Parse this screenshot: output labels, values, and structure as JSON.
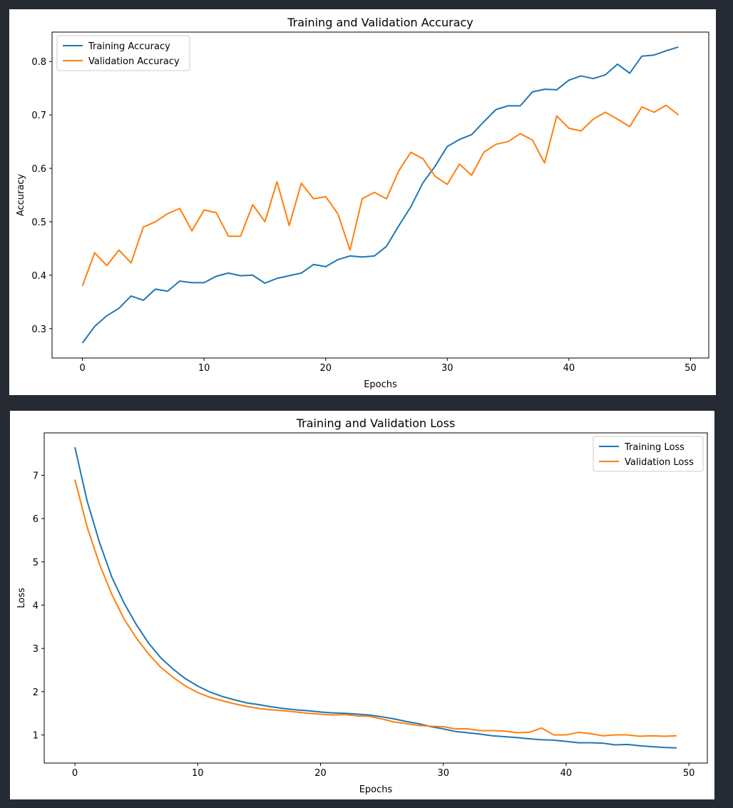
{
  "chart_data": [
    {
      "type": "line",
      "title": "Training and Validation Accuracy",
      "xlabel": "Epochs",
      "ylabel": "Accuracy",
      "xlim": [
        -2.5,
        51.5
      ],
      "ylim": [
        0.245,
        0.855
      ],
      "xticks": [
        0,
        10,
        20,
        30,
        40,
        50
      ],
      "yticks": [
        0.3,
        0.4,
        0.5,
        0.6,
        0.7,
        0.8
      ],
      "ytick_labels": [
        "0.3",
        "0.4",
        "0.5",
        "0.6",
        "0.7",
        "0.8"
      ],
      "grid": false,
      "legend_position": "top-left",
      "x": [
        0,
        1,
        2,
        3,
        4,
        5,
        6,
        7,
        8,
        9,
        10,
        11,
        12,
        13,
        14,
        15,
        16,
        17,
        18,
        19,
        20,
        21,
        22,
        23,
        24,
        25,
        26,
        27,
        28,
        29,
        30,
        31,
        32,
        33,
        34,
        35,
        36,
        37,
        38,
        39,
        40,
        41,
        42,
        43,
        44,
        45,
        46,
        47,
        48,
        49
      ],
      "series": [
        {
          "name": "Training Accuracy",
          "color": "#1f77b4",
          "values": [
            0.273,
            0.304,
            0.324,
            0.338,
            0.361,
            0.353,
            0.374,
            0.37,
            0.389,
            0.386,
            0.386,
            0.398,
            0.404,
            0.399,
            0.4,
            0.385,
            0.394,
            0.399,
            0.404,
            0.42,
            0.416,
            0.429,
            0.436,
            0.434,
            0.436,
            0.454,
            0.492,
            0.528,
            0.573,
            0.604,
            0.641,
            0.654,
            0.663,
            0.687,
            0.71,
            0.717,
            0.717,
            0.743,
            0.748,
            0.747,
            0.765,
            0.773,
            0.768,
            0.775,
            0.795,
            0.778,
            0.81,
            0.812,
            0.82,
            0.827
          ]
        },
        {
          "name": "Validation Accuracy",
          "color": "#ff7f0e",
          "values": [
            0.38,
            0.442,
            0.418,
            0.447,
            0.423,
            0.49,
            0.5,
            0.515,
            0.525,
            0.483,
            0.522,
            0.517,
            0.473,
            0.473,
            0.532,
            0.5,
            0.575,
            0.493,
            0.572,
            0.543,
            0.547,
            0.515,
            0.447,
            0.543,
            0.555,
            0.543,
            0.595,
            0.63,
            0.618,
            0.585,
            0.57,
            0.608,
            0.587,
            0.63,
            0.645,
            0.65,
            0.665,
            0.653,
            0.61,
            0.698,
            0.675,
            0.67,
            0.692,
            0.705,
            0.692,
            0.678,
            0.715,
            0.705,
            0.718,
            0.7
          ]
        }
      ]
    },
    {
      "type": "line",
      "title": "Training and Validation Loss",
      "xlabel": "Epochs",
      "ylabel": "Loss",
      "xlim": [
        -2.5,
        51.5
      ],
      "ylim": [
        0.35,
        7.98
      ],
      "xticks": [
        0,
        10,
        20,
        30,
        40,
        50
      ],
      "yticks": [
        1,
        2,
        3,
        4,
        5,
        6,
        7
      ],
      "ytick_labels": [
        "1",
        "2",
        "3",
        "4",
        "5",
        "6",
        "7"
      ],
      "grid": false,
      "legend_position": "top-right",
      "x": [
        0,
        1,
        2,
        3,
        4,
        5,
        6,
        7,
        8,
        9,
        10,
        11,
        12,
        13,
        14,
        15,
        16,
        17,
        18,
        19,
        20,
        21,
        22,
        23,
        24,
        25,
        26,
        27,
        28,
        29,
        30,
        31,
        32,
        33,
        34,
        35,
        36,
        37,
        38,
        39,
        40,
        41,
        42,
        43,
        44,
        45,
        46,
        47,
        48,
        49
      ],
      "series": [
        {
          "name": "Training Loss",
          "color": "#1f77b4",
          "values": [
            7.65,
            6.4,
            5.45,
            4.65,
            4.05,
            3.55,
            3.12,
            2.78,
            2.52,
            2.3,
            2.13,
            1.99,
            1.89,
            1.81,
            1.74,
            1.7,
            1.65,
            1.61,
            1.58,
            1.56,
            1.53,
            1.51,
            1.5,
            1.48,
            1.46,
            1.42,
            1.37,
            1.31,
            1.26,
            1.19,
            1.14,
            1.08,
            1.05,
            1.02,
            0.98,
            0.96,
            0.94,
            0.91,
            0.89,
            0.88,
            0.85,
            0.82,
            0.82,
            0.81,
            0.77,
            0.78,
            0.75,
            0.73,
            0.71,
            0.7
          ]
        },
        {
          "name": "Validation Loss",
          "color": "#ff7f0e",
          "values": [
            6.9,
            5.8,
            4.95,
            4.25,
            3.68,
            3.24,
            2.87,
            2.56,
            2.33,
            2.13,
            1.98,
            1.87,
            1.79,
            1.72,
            1.66,
            1.61,
            1.58,
            1.56,
            1.53,
            1.5,
            1.48,
            1.46,
            1.47,
            1.44,
            1.43,
            1.37,
            1.3,
            1.26,
            1.22,
            1.2,
            1.19,
            1.14,
            1.14,
            1.1,
            1.1,
            1.09,
            1.05,
            1.06,
            1.16,
            1.0,
            1.0,
            1.06,
            1.03,
            0.98,
            1.0,
            1.0,
            0.97,
            0.98,
            0.97,
            0.98
          ]
        }
      ]
    }
  ]
}
